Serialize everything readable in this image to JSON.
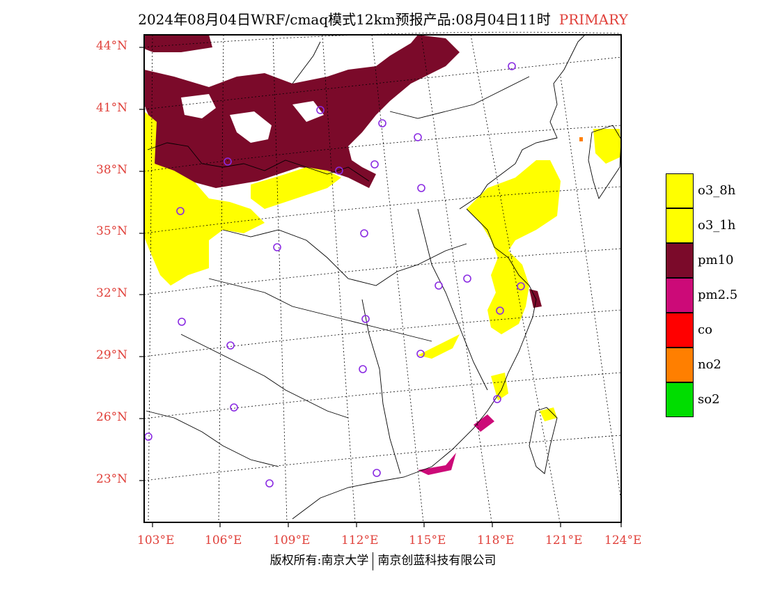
{
  "title": {
    "main": "2024年08月04日WRF/cmaq模式12km预报产品:08月04日11时",
    "tag": "PRIMARY"
  },
  "axes": {
    "lat_labels": [
      "44°N",
      "41°N",
      "38°N",
      "35°N",
      "32°N",
      "29°N",
      "26°N",
      "23°N"
    ],
    "lon_labels": [
      "103°E",
      "106°E",
      "109°E",
      "112°E",
      "115°E",
      "118°E",
      "121°E",
      "124°E"
    ]
  },
  "legend": [
    {
      "label": "o3_8h",
      "color": "#ffff00"
    },
    {
      "label": "o3_1h",
      "color": "#ffff00"
    },
    {
      "label": "pm10",
      "color": "#7b0a2a"
    },
    {
      "label": "pm2.5",
      "color": "#cc0a78"
    },
    {
      "label": "co",
      "color": "#ff0000"
    },
    {
      "label": "no2",
      "color": "#ff7f00"
    },
    {
      "label": "so2",
      "color": "#00dd00"
    }
  ],
  "colors": {
    "o3": "#ffff00",
    "pm10": "#7b0a2a",
    "pm25": "#cc0a78",
    "no2": "#ff7f00",
    "station": "#8a2be2",
    "label": "#e0403a"
  },
  "footer": {
    "left": "版权所有:南京大学",
    "right": "南京创蓝科技有限公司"
  }
}
